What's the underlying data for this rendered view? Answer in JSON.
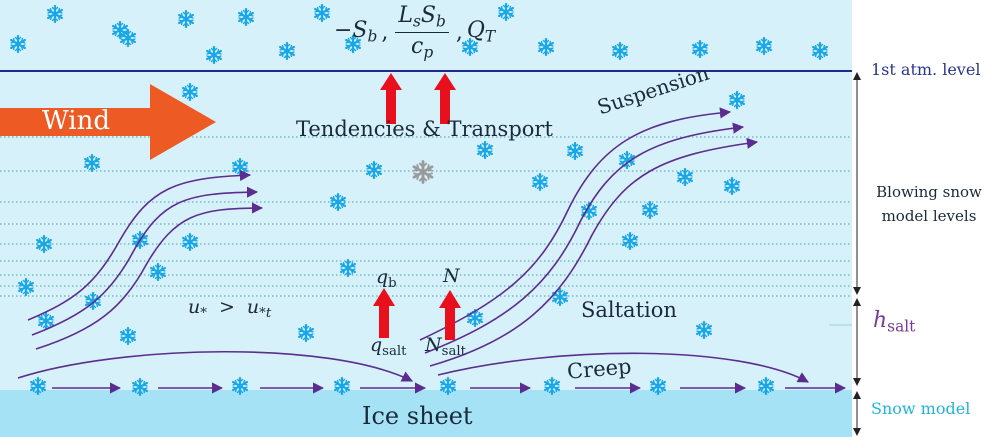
{
  "labels": {
    "wind": "Wind",
    "tendencies": "Tendencies & Transport",
    "suspension": "Suspension",
    "saltation": "Saltation",
    "creep": "Creep",
    "ice_sheet": "Ice sheet",
    "atm_level": "1st atm. level",
    "blowing_levels_line1": "Blowing snow",
    "blowing_levels_line2": "model levels",
    "snow_model": "Snow model"
  },
  "math": {
    "flux_neg": "−S",
    "flux_neg_sub": "b",
    "flux_num_L": "L",
    "flux_num_L_sub": "s",
    "flux_num_S": "S",
    "flux_num_S_sub": "b",
    "flux_den_c": "c",
    "flux_den_c_sub": "p",
    "flux_Q": "Q",
    "flux_Q_sub": "T",
    "qb": "q",
    "qb_sub": "b",
    "N": "N",
    "qsalt": "q",
    "qsalt_sub": "salt",
    "Nsalt": "N",
    "Nsalt_sub": "salt",
    "ustar_lhs": "u",
    "ustar_lhs_sub": "*",
    "ustar_op": ">",
    "ustar_rhs": "u",
    "ustar_rhs_sub": "*t",
    "hsalt": "h",
    "hsalt_sub": "salt"
  },
  "colors": {
    "atmosphere": "#d7f1fb",
    "ice_sheet": "#a6e2f6",
    "atm_line": "#1f2a8a",
    "level_dotted": "#4aa3a3",
    "flow_arrow": "#5b2d8e",
    "up_arrow": "#e8101c",
    "wind_arrow": "#ee5a24",
    "snowflake": "#1aa7e8",
    "snowflake_grey": "#9a9a9a",
    "label_dark": "#1a2a3a",
    "label_navy": "#2a3592",
    "label_purple": "#7a3a9a",
    "label_cyan": "#21b3e0"
  },
  "icons": {
    "snowflake": "snowflake-icon",
    "up_arrow": "up-arrow-icon",
    "wind_arrow": "wind-arrow-icon",
    "flow_arrow": "flow-arrow-icon"
  }
}
